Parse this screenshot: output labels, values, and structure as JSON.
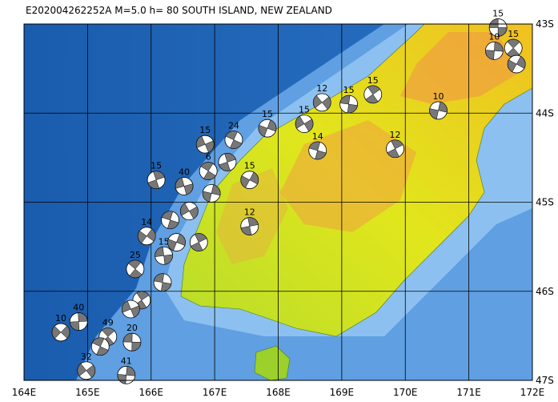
{
  "map": {
    "title": "E202004262252A  M=5.0  h= 80   SOUTH ISLAND, NEW ZEALAND",
    "xlim": [
      164,
      172
    ],
    "ylim": [
      -47,
      -43
    ],
    "x_ticks": [
      {
        "value": 164,
        "label": "164E"
      },
      {
        "value": 165,
        "label": "165E"
      },
      {
        "value": 166,
        "label": "166E"
      },
      {
        "value": 167,
        "label": "167E"
      },
      {
        "value": 168,
        "label": "168E"
      },
      {
        "value": 169,
        "label": "169E"
      },
      {
        "value": 170,
        "label": "170E"
      },
      {
        "value": 171,
        "label": "171E"
      },
      {
        "value": 172,
        "label": "172E"
      }
    ],
    "y_ticks": [
      {
        "value": -43,
        "label": "43S"
      },
      {
        "value": -44,
        "label": "44S"
      },
      {
        "value": -45,
        "label": "45S"
      },
      {
        "value": -46,
        "label": "46S"
      },
      {
        "value": -47,
        "label": "47S"
      }
    ],
    "events": [
      {
        "lon": 171.46,
        "lat": -43.04,
        "depth": 15
      },
      {
        "lon": 171.7,
        "lat": -43.27,
        "depth": 15
      },
      {
        "lon": 171.4,
        "lat": -43.3,
        "depth": 10
      },
      {
        "lon": 168.69,
        "lat": -43.88,
        "depth": 12
      },
      {
        "lon": 169.11,
        "lat": -43.9,
        "depth": 15
      },
      {
        "lon": 169.49,
        "lat": -43.79,
        "depth": 15
      },
      {
        "lon": 170.52,
        "lat": -43.97,
        "depth": 10
      },
      {
        "lon": 168.41,
        "lat": -44.12,
        "depth": 15
      },
      {
        "lon": 168.62,
        "lat": -44.42,
        "depth": 14
      },
      {
        "lon": 169.84,
        "lat": -44.4,
        "depth": 12
      },
      {
        "lon": 167.83,
        "lat": -44.17,
        "depth": 15
      },
      {
        "lon": 166.85,
        "lat": -44.35,
        "depth": 15
      },
      {
        "lon": 167.3,
        "lat": -44.3,
        "depth": 24
      },
      {
        "lon": 166.08,
        "lat": -44.75,
        "depth": 15
      },
      {
        "lon": 167.55,
        "lat": -44.75,
        "depth": 15
      },
      {
        "lon": 166.52,
        "lat": -44.82,
        "depth": 40
      },
      {
        "lon": 166.9,
        "lat": -44.65,
        "depth": 6
      },
      {
        "lon": 167.55,
        "lat": -45.27,
        "depth": 12
      },
      {
        "lon": 165.93,
        "lat": -45.38,
        "depth": 14
      },
      {
        "lon": 166.2,
        "lat": -45.6,
        "depth": 15
      },
      {
        "lon": 165.75,
        "lat": -45.75,
        "depth": 25
      },
      {
        "lon": 164.86,
        "lat": -46.34,
        "depth": 40
      },
      {
        "lon": 164.58,
        "lat": -46.46,
        "depth": 10
      },
      {
        "lon": 165.7,
        "lat": -46.57,
        "depth": 20
      },
      {
        "lon": 165.32,
        "lat": -46.51,
        "depth": 49
      },
      {
        "lon": 165.61,
        "lat": -46.94,
        "depth": 41
      },
      {
        "lon": 164.98,
        "lat": -46.89,
        "depth": 32
      },
      {
        "lon": 166.18,
        "lat": -45.9
      },
      {
        "lon": 165.85,
        "lat": -46.1
      },
      {
        "lon": 166.95,
        "lat": -44.9
      },
      {
        "lon": 166.6,
        "lat": -45.1
      },
      {
        "lon": 166.3,
        "lat": -45.2
      },
      {
        "lon": 166.75,
        "lat": -45.45
      },
      {
        "lon": 166.4,
        "lat": -45.45
      },
      {
        "lon": 165.68,
        "lat": -46.2
      },
      {
        "lon": 165.2,
        "lat": -46.62
      },
      {
        "lon": 167.2,
        "lat": -44.55
      },
      {
        "lon": 171.75,
        "lat": -43.45
      }
    ]
  }
}
